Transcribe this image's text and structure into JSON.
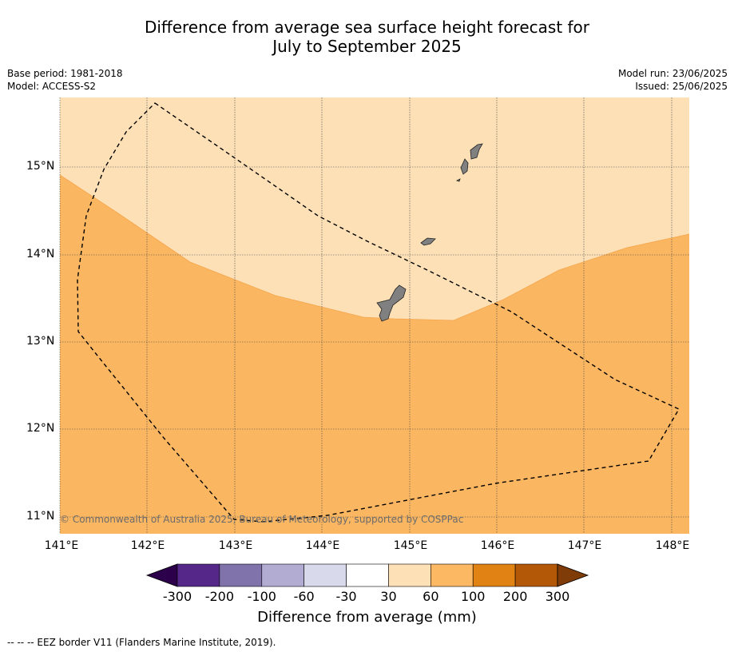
{
  "title_line1": "Difference from average sea surface height forecast for",
  "title_line2": "July to September 2025",
  "base_period": "Base period: 1981-2018",
  "model": "Model: ACCESS-S2",
  "model_run": "Model run: 23/06/2025",
  "issued": "Issued: 25/06/2025",
  "copyright": "© Commonwealth of Australia 2025, Bureau of Meteorology, supported by COSPPac",
  "lat_labels": [
    "15°N",
    "14°N",
    "13°N",
    "12°N",
    "11°N"
  ],
  "lon_labels": [
    "141°E",
    "142°E",
    "143°E",
    "144°E",
    "145°E",
    "146°E",
    "147°E",
    "148°E"
  ],
  "colorbar": {
    "ticks": [
      "-300",
      "-200",
      "-100",
      "-60",
      "-30",
      "30",
      "60",
      "100",
      "200",
      "300"
    ],
    "colors": [
      "#2d004b",
      "#542788",
      "#8073ac",
      "#b2abd2",
      "#d8daeb",
      "#ffffff",
      "#fee0b6",
      "#fdb863",
      "#e08214",
      "#b35806",
      "#7f3b08"
    ],
    "label": "Difference from average (mm)"
  },
  "legend_note": "--  --  -- EEZ border V11 (Flanders Marine Institute, 2019).",
  "map_colors": {
    "band_30_60": "#fde0b6",
    "band_60_100": "#fbb662",
    "land": "#808080"
  }
}
